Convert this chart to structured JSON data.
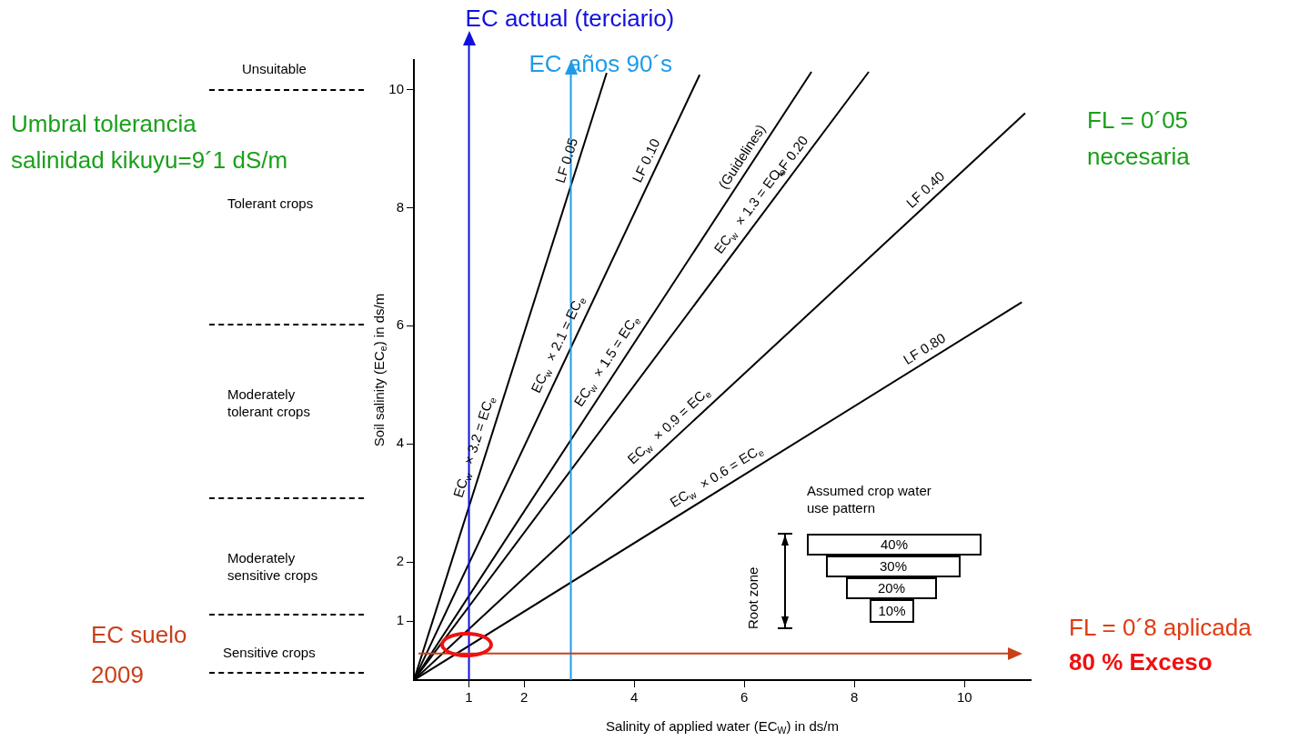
{
  "chart_data": {
    "type": "line",
    "xlabel": "Salinity of applied water (EC$_{W}$) in ds/m",
    "ylabel": "Soil salinity (EC$_{e}$) in ds/m",
    "xlim": [
      0,
      11.2
    ],
    "ylim": [
      0,
      10.5
    ],
    "xticks": [
      1,
      2,
      4,
      6,
      8,
      10
    ],
    "yticks": [
      1,
      2,
      4,
      6,
      8,
      10
    ],
    "grid": false,
    "legend": false,
    "marker": "none",
    "line_style": "solid",
    "series": [
      {
        "name": "LF 0.05",
        "color": "#000000",
        "x": [
          0,
          3.5
        ],
        "values": [
          0,
          10.28
        ]
      },
      {
        "name": "LF 0.10",
        "color": "#000000",
        "x": [
          0,
          5.19
        ],
        "values": [
          0,
          10.25
        ]
      },
      {
        "name": "(Guidelines)",
        "color": "#000000",
        "x": [
          0,
          7.22
        ],
        "values": [
          0,
          10.3
        ]
      },
      {
        "name": "LF 0.20",
        "color": "#000000",
        "x": [
          0,
          8.26
        ],
        "values": [
          0,
          10.3
        ]
      },
      {
        "name": "LF 0.40",
        "color": "#000000",
        "x": [
          0,
          11.1
        ],
        "values": [
          0,
          9.6
        ]
      },
      {
        "name": "LF 0.80",
        "color": "#000000",
        "x": [
          0,
          11.04
        ],
        "values": [
          0,
          6.4
        ]
      }
    ],
    "ref_lines": [
      {
        "axis": "x",
        "value": 1,
        "label": "EC actual (terciario)",
        "color": "#1010e0"
      },
      {
        "axis": "x",
        "value": 2.85,
        "label": "EC años 90´s",
        "color": "#1e9be8"
      },
      {
        "axis": "y",
        "value": 0.45,
        "label": "EC suelo\n2009",
        "color": "#c8401a"
      }
    ],
    "annotations": [
      "Umbral tolerancia\nsalinidad kikuyu=9´1 dS/m",
      "FL = 0´05\nnecesaria",
      "FL = 0´8 aplicada",
      "80 % Exceso",
      "Assumed crop water\nuse pattern",
      "Root zone",
      "40%",
      "30%",
      "20%",
      "10%",
      {
        "text": "EC$_{w}$ × 3.2 = EC$_{e}$",
        "x": 1.32,
        "y": 3.88
      },
      {
        "text": "EC$_{w}$ × 2.1 = EC$_{e}$",
        "x": 2.83,
        "y": 5.59
      },
      {
        "text": "EC$_{w}$ × 1.5 = EC$_{e}$",
        "x": 3.7,
        "y": 5.28
      },
      {
        "text": "EC$_{w}$ × 1.3 = EC$_{e}$",
        "x": 6.28,
        "y": 7.83
      },
      {
        "text": "EC$_{w}$ × 0.9 = EC$_{e}$",
        "x": 4.79,
        "y": 4.14
      },
      {
        "text": "EC$_{w}$ × 0.6 = EC$_{e}$",
        "x": 5.62,
        "y": 3.26
      },
      "Unsuitable",
      "Tolerant crops",
      "Moderately\ntolerant crops",
      "Moderately\nsensitive crops",
      "Sensitive crops"
    ]
  }
}
